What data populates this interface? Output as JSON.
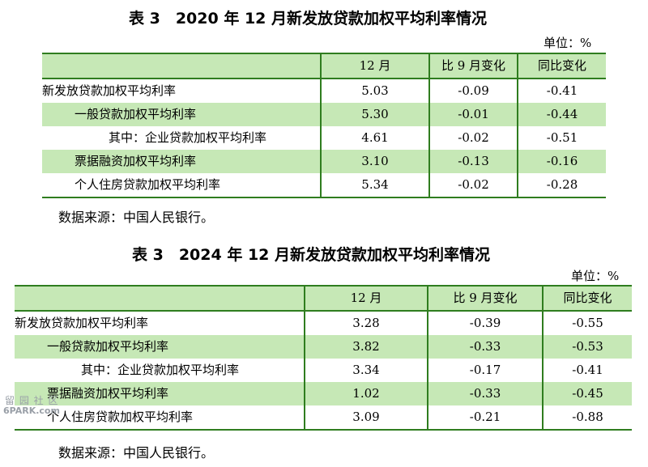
{
  "table1": {
    "title": "表 3　2020 年 12 月新发放贷款加权平均利率情况",
    "unit": "单位：%",
    "headers": [
      "",
      "12 月",
      "比 9 月变化",
      "同比变化"
    ],
    "rows": [
      {
        "label": "新发放贷款加权平均利率",
        "v": [
          "5.03",
          "-0.09",
          "-0.41"
        ]
      },
      {
        "label": "一般贷款加权平均利率",
        "v": [
          "5.30",
          "-0.01",
          "-0.44"
        ]
      },
      {
        "label": "其中：企业贷款加权平均利率",
        "v": [
          "4.61",
          "-0.02",
          "-0.51"
        ]
      },
      {
        "label": "票据融资加权平均利率",
        "v": [
          "3.10",
          "-0.13",
          "-0.16"
        ]
      },
      {
        "label": "个人住房贷款加权平均利率",
        "v": [
          "5.34",
          "-0.02",
          "-0.28"
        ]
      }
    ],
    "source": "数据来源：中国人民银行。"
  },
  "table2": {
    "title": "表 3　2024 年 12 月新发放贷款加权平均利率情况",
    "unit": "单位：%",
    "headers": [
      "",
      "12 月",
      "比 9 月变化",
      "同比变化"
    ],
    "rows": [
      {
        "label": "新发放贷款加权平均利率",
        "v": [
          "3.28",
          "-0.39",
          "-0.55"
        ]
      },
      {
        "label": "一般贷款加权平均利率",
        "v": [
          "3.82",
          "-0.33",
          "-0.53"
        ]
      },
      {
        "label": "其中：企业贷款加权平均利率",
        "v": [
          "3.34",
          "-0.17",
          "-0.41"
        ]
      },
      {
        "label": "票据融资加权平均利率",
        "v": [
          "1.02",
          "-0.33",
          "-0.45"
        ]
      },
      {
        "label": "个人住房贷款加权平均利率",
        "v": [
          "3.09",
          "-0.21",
          "-0.88"
        ]
      }
    ],
    "source": "数据来源：中国人民银行。"
  },
  "watermark": {
    "line1": "留 园 社 区",
    "line2": "6PARK.com"
  },
  "colors": {
    "header_fill": "#c6e8b6",
    "row_fill": "#c6e8b6",
    "rule": "#2f7d1f"
  }
}
